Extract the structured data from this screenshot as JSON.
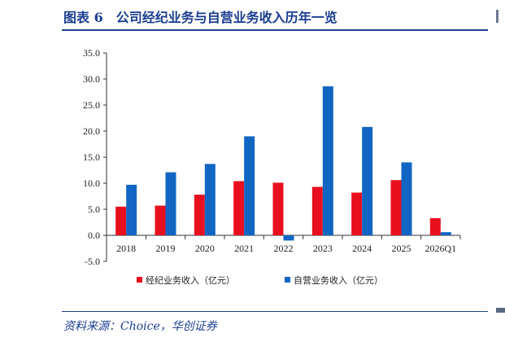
{
  "figure": {
    "title": "图表 6　公司经纪业务与自营业务收入历年一览",
    "source": "资料来源：Choice，华创证券"
  },
  "chart_data": {
    "type": "bar",
    "categories": [
      "2018",
      "2019",
      "2020",
      "2021",
      "2022",
      "2023",
      "2024",
      "2025",
      "2026Q1"
    ],
    "series": [
      {
        "name": "经纪业务收入（亿元）",
        "color": "#e8101e",
        "values": [
          5.5,
          5.7,
          7.8,
          10.4,
          10.1,
          9.3,
          8.2,
          10.6,
          3.3
        ]
      },
      {
        "name": "自营业务收入（亿元）",
        "color": "#1166c4",
        "values": [
          9.7,
          12.1,
          13.7,
          19.0,
          -1.0,
          28.6,
          20.8,
          14.0,
          0.6
        ]
      }
    ],
    "ylim": [
      -5,
      35
    ],
    "yticks": [
      "-5.0",
      "0.0",
      "5.0",
      "10.0",
      "15.0",
      "20.0",
      "25.0",
      "30.0",
      "35.0"
    ],
    "legend_position": "bottom",
    "grid": false
  }
}
